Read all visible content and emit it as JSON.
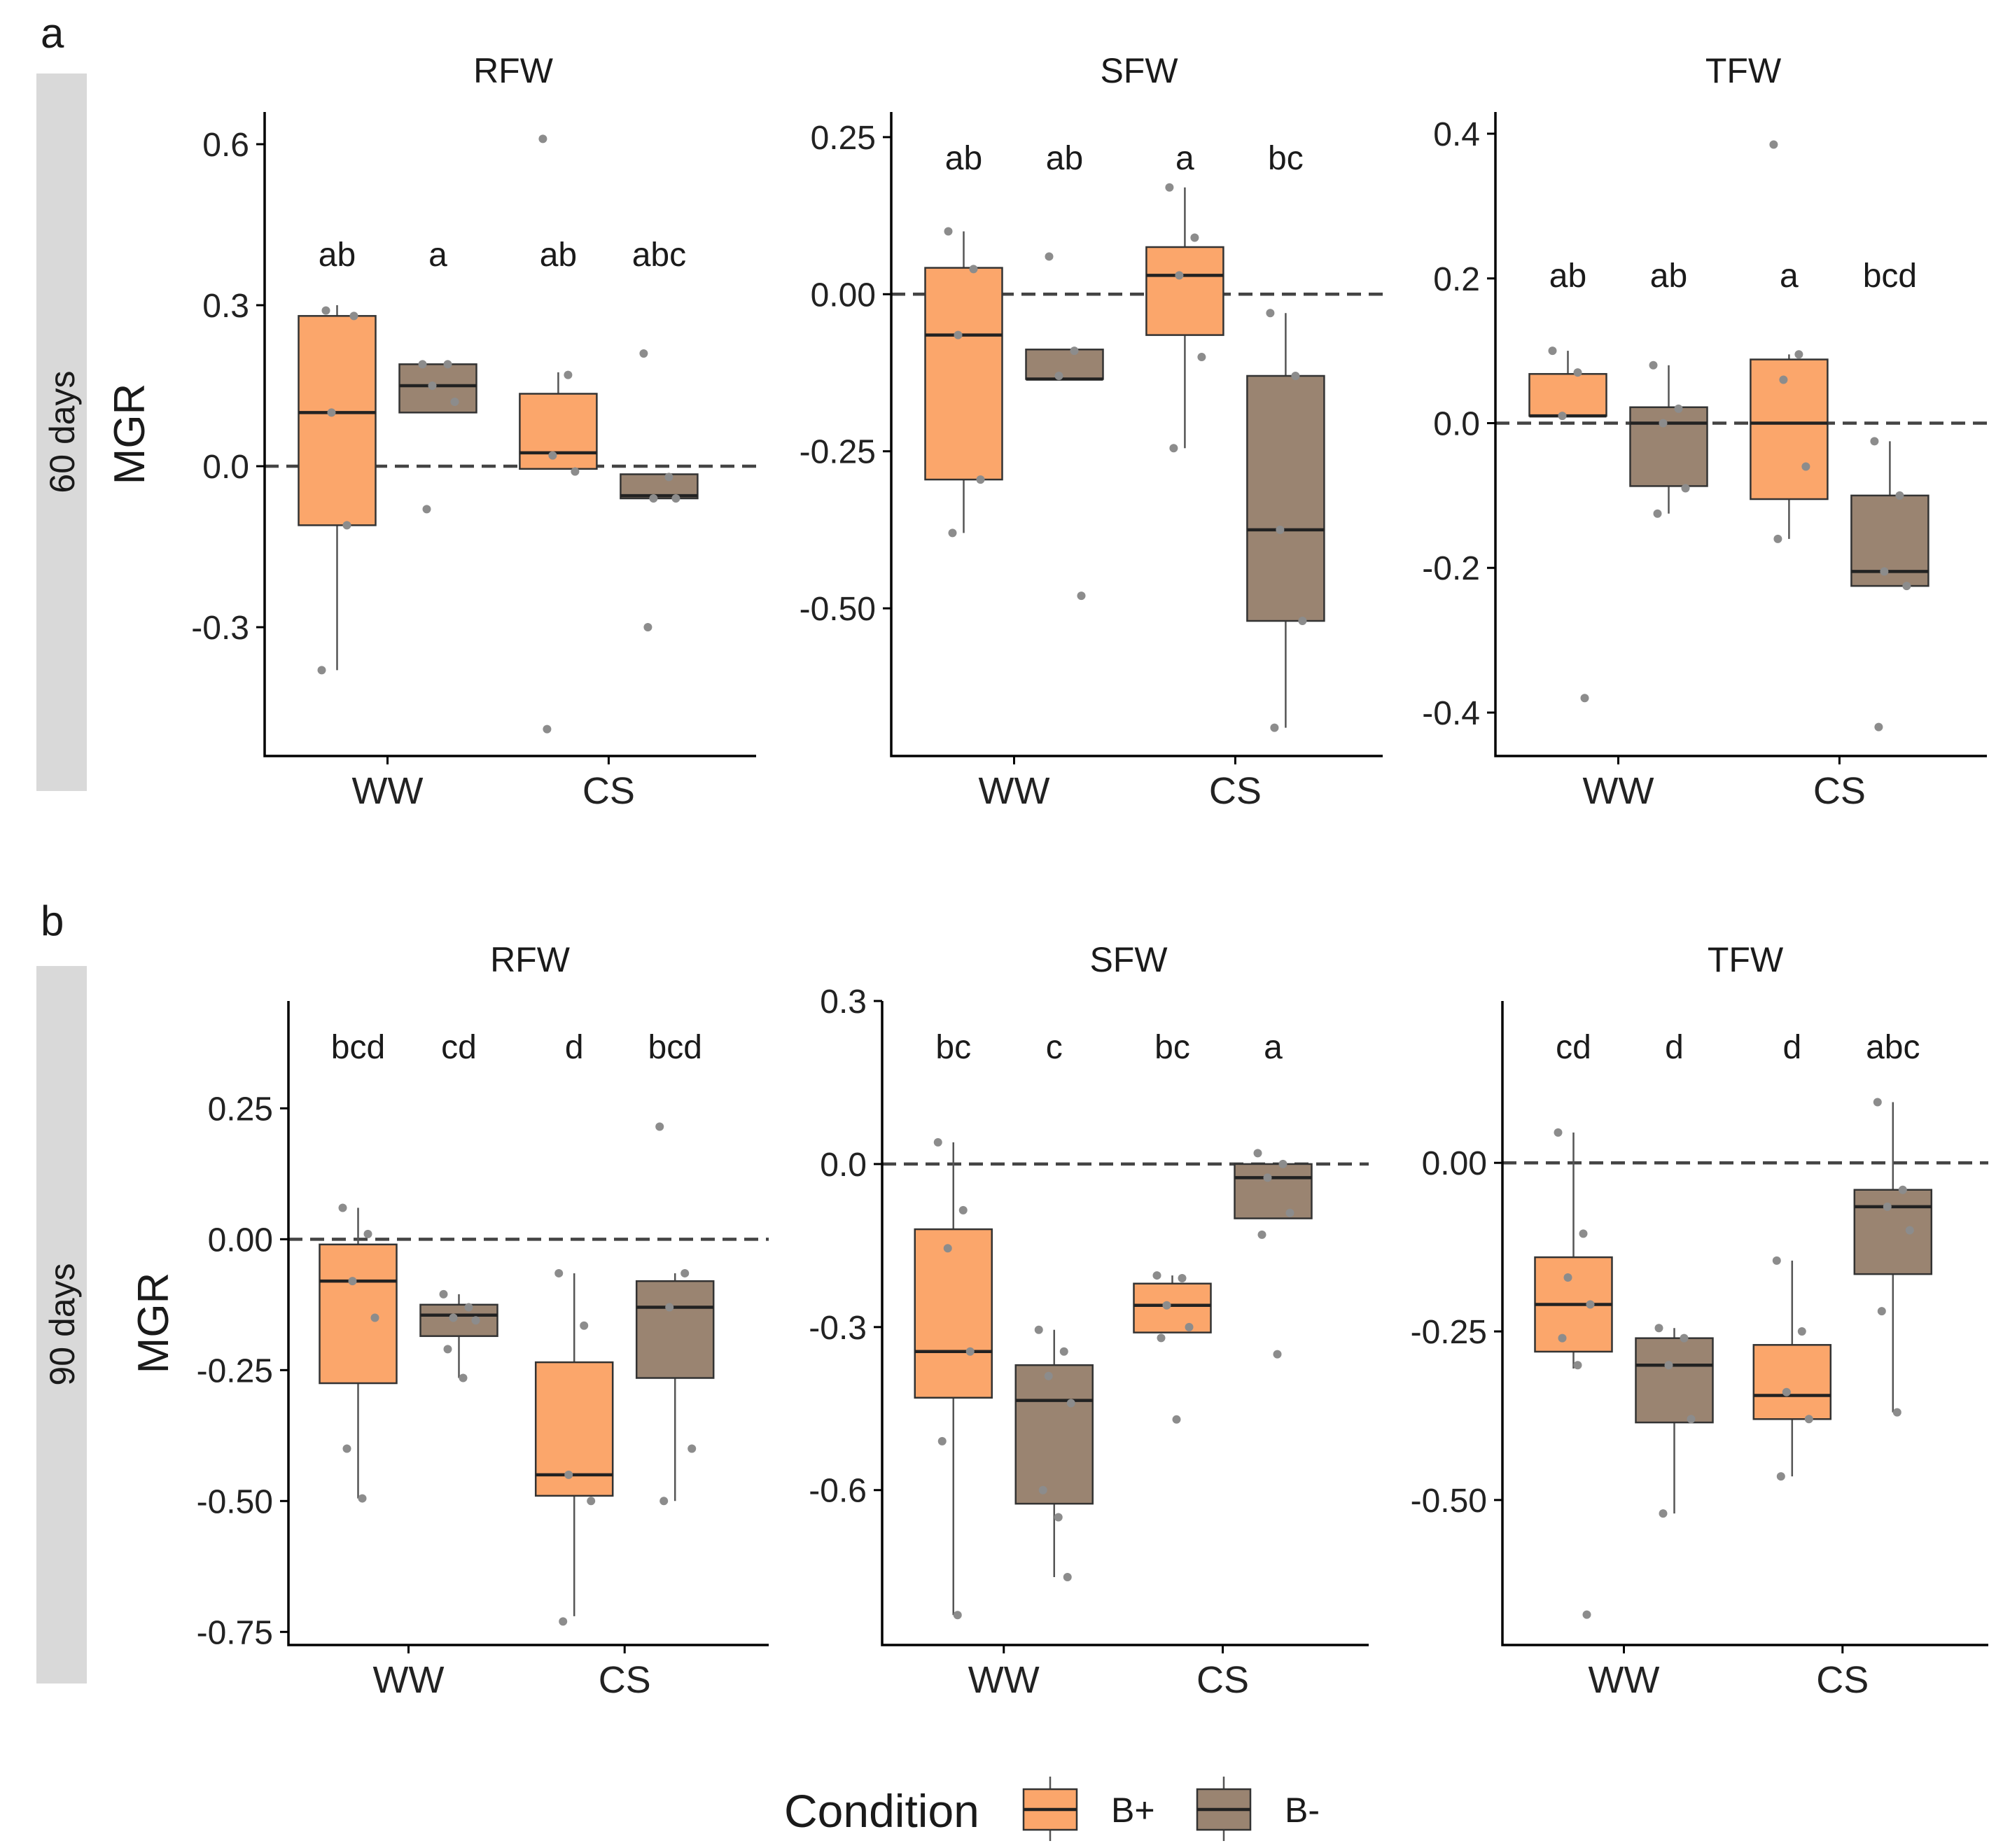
{
  "colors": {
    "B+": "#FBA66B",
    "B-": "#9A8471",
    "point": "#8c8c8c",
    "strip": "#d9d9d9"
  },
  "legend": {
    "title": "Condition",
    "items": [
      "B+",
      "B-"
    ]
  },
  "chart_data": [
    {
      "panel": "a",
      "period": "60 days",
      "type": "box",
      "title": "RFW",
      "ylabel": "MGR",
      "categories": [
        "WW",
        "CS"
      ],
      "ylim": [
        -0.54,
        0.66
      ],
      "yticks": [
        -0.3,
        0.0,
        0.3,
        0.6
      ],
      "ytick_labels": [
        "-0.3",
        "0.0",
        "0.3",
        "0.6"
      ],
      "boxes": [
        {
          "group": "B+",
          "cat": "WW",
          "letters": "ab",
          "whisker_low": -0.38,
          "q1": -0.11,
          "median": 0.1,
          "q3": 0.28,
          "whisker_high": 0.3,
          "points": [
            -0.38,
            -0.11,
            0.1,
            0.28,
            0.29
          ]
        },
        {
          "group": "B-",
          "cat": "WW",
          "letters": "a",
          "whisker_low": 0.1,
          "q1": 0.1,
          "median": 0.15,
          "q3": 0.19,
          "whisker_high": 0.19,
          "points": [
            0.19,
            0.19,
            0.15,
            0.12,
            -0.08
          ]
        },
        {
          "group": "B+",
          "cat": "CS",
          "letters": "ab",
          "whisker_low": -0.005,
          "q1": -0.005,
          "median": 0.025,
          "q3": 0.135,
          "whisker_high": 0.175,
          "points": [
            0.61,
            0.17,
            0.02,
            -0.01,
            -0.49
          ]
        },
        {
          "group": "B-",
          "cat": "CS",
          "letters": "abc",
          "whisker_low": -0.06,
          "q1": -0.06,
          "median": -0.055,
          "q3": -0.015,
          "whisker_high": -0.015,
          "points": [
            0.21,
            -0.02,
            -0.06,
            -0.06,
            -0.3
          ]
        }
      ]
    },
    {
      "panel": "a",
      "period": "60 days",
      "type": "box",
      "title": "SFW",
      "ylabel": "",
      "categories": [
        "WW",
        "CS"
      ],
      "ylim": [
        -0.735,
        0.29
      ],
      "yticks": [
        -0.5,
        -0.25,
        0.0,
        0.25
      ],
      "ytick_labels": [
        "-0.50",
        "-0.25",
        "0.00",
        "0.25"
      ],
      "boxes": [
        {
          "group": "B+",
          "cat": "WW",
          "letters": "ab",
          "whisker_low": -0.38,
          "q1": -0.295,
          "median": -0.065,
          "q3": 0.042,
          "whisker_high": 0.1,
          "points": [
            0.1,
            0.04,
            -0.065,
            -0.295,
            -0.38
          ]
        },
        {
          "group": "B-",
          "cat": "WW",
          "letters": "ab",
          "whisker_low": -0.135,
          "q1": -0.135,
          "median": -0.135,
          "q3": -0.088,
          "whisker_high": -0.088,
          "points": [
            0.06,
            -0.09,
            -0.13,
            -0.48
          ]
        },
        {
          "group": "B+",
          "cat": "CS",
          "letters": "a",
          "whisker_low": -0.245,
          "q1": -0.065,
          "median": 0.03,
          "q3": 0.075,
          "whisker_high": 0.17,
          "points": [
            0.17,
            0.09,
            0.03,
            -0.1,
            -0.245
          ]
        },
        {
          "group": "B-",
          "cat": "CS",
          "letters": "bc",
          "whisker_low": -0.69,
          "q1": -0.52,
          "median": -0.375,
          "q3": -0.13,
          "whisker_high": -0.03,
          "points": [
            -0.03,
            -0.13,
            -0.375,
            -0.52,
            -0.69
          ]
        }
      ]
    },
    {
      "panel": "a",
      "period": "60 days",
      "type": "box",
      "title": "TFW",
      "ylabel": "",
      "categories": [
        "WW",
        "CS"
      ],
      "ylim": [
        -0.46,
        0.43
      ],
      "yticks": [
        -0.4,
        -0.2,
        0.0,
        0.2,
        0.4
      ],
      "ytick_labels": [
        "-0.4",
        "-0.2",
        "0.0",
        "0.2",
        "0.4"
      ],
      "boxes": [
        {
          "group": "B+",
          "cat": "WW",
          "letters": "ab",
          "whisker_low": 0.01,
          "q1": 0.01,
          "median": 0.01,
          "q3": 0.068,
          "whisker_high": 0.1,
          "points": [
            0.1,
            0.07,
            0.01,
            -0.38
          ]
        },
        {
          "group": "B-",
          "cat": "WW",
          "letters": "ab",
          "whisker_low": -0.125,
          "q1": -0.087,
          "median": 0.0,
          "q3": 0.022,
          "whisker_high": 0.08,
          "points": [
            0.08,
            0.02,
            0.0,
            -0.09,
            -0.125
          ]
        },
        {
          "group": "B+",
          "cat": "CS",
          "letters": "a",
          "whisker_low": -0.16,
          "q1": -0.105,
          "median": 0.0,
          "q3": 0.088,
          "whisker_high": 0.095,
          "points": [
            0.385,
            0.095,
            0.06,
            -0.06,
            -0.16
          ]
        },
        {
          "group": "B-",
          "cat": "CS",
          "letters": "bcd",
          "whisker_low": -0.225,
          "q1": -0.225,
          "median": -0.205,
          "q3": -0.1,
          "whisker_high": -0.025,
          "points": [
            -0.025,
            -0.1,
            -0.205,
            -0.225,
            -0.42
          ]
        }
      ]
    },
    {
      "panel": "b",
      "period": "90 days",
      "type": "box",
      "title": "RFW",
      "ylabel": "MGR",
      "categories": [
        "WW",
        "CS"
      ],
      "ylim": [
        -0.775,
        0.455
      ],
      "yticks": [
        -0.75,
        -0.5,
        -0.25,
        0.0,
        0.25
      ],
      "ytick_labels": [
        "-0.75",
        "-0.50",
        "-0.25",
        "0.00",
        "0.25"
      ],
      "boxes": [
        {
          "group": "B+",
          "cat": "WW",
          "letters": "bcd",
          "whisker_low": -0.495,
          "q1": -0.275,
          "median": -0.08,
          "q3": -0.01,
          "whisker_high": 0.06,
          "points": [
            0.06,
            0.01,
            -0.08,
            -0.15,
            -0.4,
            -0.495
          ]
        },
        {
          "group": "B-",
          "cat": "WW",
          "letters": "cd",
          "whisker_low": -0.265,
          "q1": -0.185,
          "median": -0.145,
          "q3": -0.125,
          "whisker_high": -0.105,
          "points": [
            -0.105,
            -0.13,
            -0.15,
            -0.155,
            -0.21,
            -0.265
          ]
        },
        {
          "group": "B+",
          "cat": "CS",
          "letters": "d",
          "whisker_low": -0.72,
          "q1": -0.49,
          "median": -0.45,
          "q3": -0.235,
          "whisker_high": -0.065,
          "points": [
            -0.065,
            -0.165,
            -0.45,
            -0.5,
            -0.73
          ]
        },
        {
          "group": "B-",
          "cat": "CS",
          "letters": "bcd",
          "whisker_low": -0.5,
          "q1": -0.265,
          "median": -0.13,
          "q3": -0.08,
          "whisker_high": -0.065,
          "points": [
            0.215,
            -0.065,
            -0.13,
            -0.4,
            -0.5
          ]
        }
      ]
    },
    {
      "panel": "b",
      "period": "90 days",
      "type": "box",
      "title": "SFW",
      "ylabel": "",
      "categories": [
        "WW",
        "CS"
      ],
      "ylim": [
        -0.885,
        0.3
      ],
      "yticks": [
        -0.6,
        -0.3,
        0.0,
        0.3
      ],
      "ytick_labels": [
        "-0.6",
        "-0.3",
        "0.0",
        "0.3"
      ],
      "boxes": [
        {
          "group": "B+",
          "cat": "WW",
          "letters": "bc",
          "whisker_low": -0.83,
          "q1": -0.43,
          "median": -0.345,
          "q3": -0.12,
          "whisker_high": 0.04,
          "points": [
            0.04,
            -0.085,
            -0.155,
            -0.345,
            -0.51,
            -0.83
          ]
        },
        {
          "group": "B-",
          "cat": "WW",
          "letters": "c",
          "whisker_low": -0.76,
          "q1": -0.625,
          "median": -0.435,
          "q3": -0.37,
          "whisker_high": -0.305,
          "points": [
            -0.305,
            -0.345,
            -0.39,
            -0.44,
            -0.6,
            -0.65,
            -0.76
          ]
        },
        {
          "group": "B+",
          "cat": "CS",
          "letters": "bc",
          "whisker_low": -0.31,
          "q1": -0.31,
          "median": -0.26,
          "q3": -0.22,
          "whisker_high": -0.205,
          "points": [
            -0.205,
            -0.21,
            -0.26,
            -0.3,
            -0.32,
            -0.47
          ]
        },
        {
          "group": "B-",
          "cat": "CS",
          "letters": "a",
          "whisker_low": -0.1,
          "q1": -0.1,
          "median": -0.025,
          "q3": 0.0,
          "whisker_high": 0.0,
          "points": [
            0.02,
            0.0,
            -0.025,
            -0.09,
            -0.13,
            -0.35
          ]
        }
      ]
    },
    {
      "panel": "b",
      "period": "90 days",
      "type": "box",
      "title": "TFW",
      "ylabel": "",
      "categories": [
        "WW",
        "CS"
      ],
      "ylim": [
        -0.715,
        0.24
      ],
      "yticks": [
        -0.5,
        -0.25,
        0.0
      ],
      "ytick_labels": [
        "-0.50",
        "-0.25",
        "0.00"
      ],
      "boxes": [
        {
          "group": "B+",
          "cat": "WW",
          "letters": "cd",
          "whisker_low": -0.305,
          "q1": -0.28,
          "median": -0.21,
          "q3": -0.14,
          "whisker_high": 0.045,
          "points": [
            0.045,
            -0.105,
            -0.17,
            -0.21,
            -0.26,
            -0.3,
            -0.67
          ]
        },
        {
          "group": "B-",
          "cat": "WW",
          "letters": "d",
          "whisker_low": -0.52,
          "q1": -0.385,
          "median": -0.3,
          "q3": -0.26,
          "whisker_high": -0.245,
          "points": [
            -0.245,
            -0.26,
            -0.3,
            -0.38,
            -0.52
          ]
        },
        {
          "group": "B+",
          "cat": "CS",
          "letters": "d",
          "whisker_low": -0.465,
          "q1": -0.38,
          "median": -0.345,
          "q3": -0.27,
          "whisker_high": -0.145,
          "points": [
            -0.145,
            -0.25,
            -0.34,
            -0.38,
            -0.465
          ]
        },
        {
          "group": "B-",
          "cat": "CS",
          "letters": "abc",
          "whisker_low": -0.37,
          "q1": -0.165,
          "median": -0.065,
          "q3": -0.04,
          "whisker_high": 0.09,
          "points": [
            0.09,
            -0.04,
            -0.065,
            -0.1,
            -0.22,
            -0.37
          ]
        }
      ]
    }
  ],
  "figure": {
    "panel_labels": [
      "a",
      "b"
    ],
    "strip_labels": [
      "60 days",
      "90 days"
    ]
  }
}
